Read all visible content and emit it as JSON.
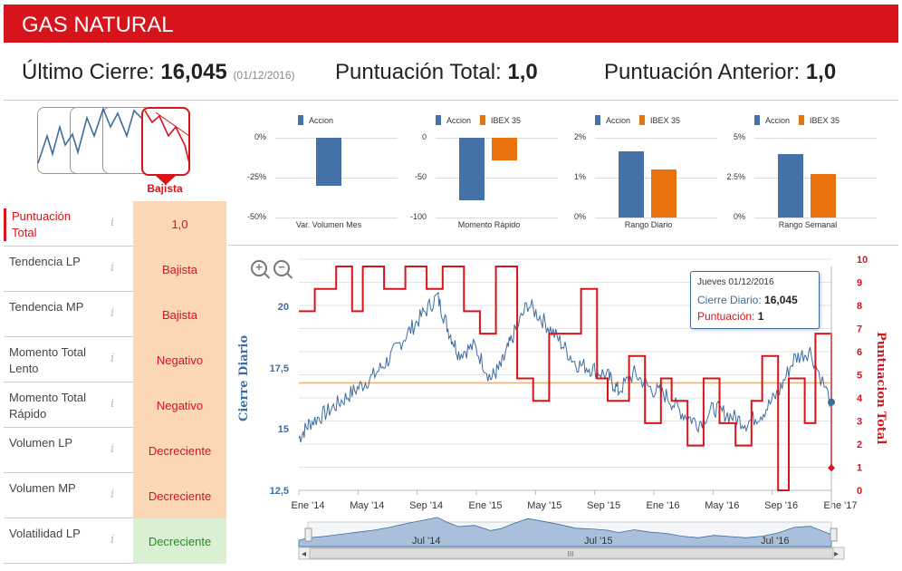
{
  "header": {
    "title": "GAS NATURAL"
  },
  "stats": {
    "ultimo_cierre_label": "Último Cierre:",
    "ultimo_cierre_value": "16,045",
    "ultimo_cierre_date": "(01/12/2016)",
    "puntuacion_total_label": "Puntuación Total:",
    "puntuacion_total_value": "1,0",
    "puntuacion_anterior_label": "Puntuación Anterior:",
    "puntuacion_anterior_value": "1,0"
  },
  "trend": {
    "label": "Bajista"
  },
  "table": {
    "rows": [
      {
        "label": "Puntuación Total",
        "value": "1,0",
        "bg": "#fcd7b6",
        "color": "#d7131b"
      },
      {
        "label": "Tendencia LP",
        "value": "Bajista",
        "bg": "#fcd7b6",
        "color": "#d7131b"
      },
      {
        "label": "Tendencia MP",
        "value": "Bajista",
        "bg": "#fcd7b6",
        "color": "#d7131b"
      },
      {
        "label": "Momento Total Lento",
        "value": "Negativo",
        "bg": "#fcd7b6",
        "color": "#d7131b"
      },
      {
        "label": "Momento Total Rápido",
        "value": "Negativo",
        "bg": "#fcd7b6",
        "color": "#d7131b"
      },
      {
        "label": "Volumen LP",
        "value": "Decreciente",
        "bg": "#fcd7b6",
        "color": "#d7131b"
      },
      {
        "label": "Volumen MP",
        "value": "Decreciente",
        "bg": "#fcd7b6",
        "color": "#d7131b"
      },
      {
        "label": "Volatilidad LP",
        "value": "Decreciente",
        "bg": "#d9f0d3",
        "color": "#2a8a2a"
      }
    ],
    "info_glyph": "i"
  },
  "colors": {
    "accion": "#4472a8",
    "ibex": "#e8720c",
    "red": "#d7131b",
    "blue_line": "#3d6d9e"
  },
  "chart_data": [
    {
      "type": "bar",
      "title": "Var. Volumen Mes",
      "series": [
        {
          "name": "Accion",
          "values": [
            -30
          ]
        }
      ],
      "ticks": [
        "0%",
        "-25%",
        "-50%"
      ],
      "ylim": [
        -50,
        0
      ]
    },
    {
      "type": "bar",
      "title": "Momento Rápido",
      "series": [
        {
          "name": "Accion",
          "values": [
            -78
          ]
        },
        {
          "name": "IBEX 35",
          "values": [
            -28
          ]
        }
      ],
      "ticks": [
        "0",
        "-50",
        "-100"
      ],
      "ylim": [
        -100,
        0
      ]
    },
    {
      "type": "bar",
      "title": "Rango Diario",
      "series": [
        {
          "name": "Accion",
          "values": [
            1.65
          ]
        },
        {
          "name": "IBEX 35",
          "values": [
            1.2
          ]
        }
      ],
      "ticks": [
        "2%",
        "1%",
        "0%"
      ],
      "ylim": [
        0,
        2
      ]
    },
    {
      "type": "bar",
      "title": "Rango Semanal",
      "series": [
        {
          "name": "Accion",
          "values": [
            4.0
          ]
        },
        {
          "name": "IBEX 35",
          "values": [
            2.7
          ]
        }
      ],
      "ticks": [
        "5%",
        "2.5%",
        "0%"
      ],
      "ylim": [
        0,
        5
      ]
    },
    {
      "type": "line",
      "title": "",
      "ylabel": "Cierre Diario",
      "y2label": "Puntuacion Total",
      "ylim": [
        12.5,
        21.5
      ],
      "y2lim": [
        0,
        10
      ],
      "yticks": [
        "20",
        "17,5",
        "15",
        "12,5"
      ],
      "y2ticks": [
        "10",
        "9",
        "8",
        "7",
        "6",
        "5",
        "4",
        "3",
        "2",
        "1",
        "0"
      ],
      "xticks": [
        "Ene '14",
        "May '14",
        "Sep '14",
        "Ene '15",
        "May '15",
        "Sep '15",
        "Ene '16",
        "May '16",
        "Sep '16",
        "Ene '17"
      ],
      "navigator_ticks": [
        "Jul '14",
        "Jul '15",
        "Jul '16"
      ],
      "reference_level": 4.8,
      "series": [
        {
          "name": "Cierre Diario",
          "x": [
            0,
            0.02,
            0.05,
            0.08,
            0.11,
            0.14,
            0.17,
            0.2,
            0.23,
            0.26,
            0.28,
            0.3,
            0.33,
            0.36,
            0.38,
            0.4,
            0.43,
            0.46,
            0.49,
            0.52,
            0.55,
            0.58,
            0.6,
            0.63,
            0.66,
            0.69,
            0.72,
            0.75,
            0.78,
            0.81,
            0.84,
            0.87,
            0.9,
            0.93,
            0.96,
            1.0
          ],
          "values": [
            14.6,
            15.2,
            15.6,
            16.1,
            16.6,
            17.1,
            17.8,
            18.7,
            19.5,
            20.3,
            19.0,
            18.0,
            18.3,
            17.0,
            17.5,
            18.6,
            20.0,
            19.3,
            18.5,
            17.6,
            17.4,
            17.1,
            16.5,
            17.2,
            16.6,
            16.3,
            15.6,
            15.2,
            15.8,
            15.5,
            15.2,
            15.6,
            16.4,
            17.8,
            18.1,
            16.0
          ]
        },
        {
          "name": "Puntuacion Total",
          "x": [
            0,
            0.03,
            0.07,
            0.1,
            0.12,
            0.16,
            0.2,
            0.24,
            0.27,
            0.31,
            0.34,
            0.37,
            0.41,
            0.44,
            0.47,
            0.5,
            0.53,
            0.56,
            0.58,
            0.62,
            0.65,
            0.68,
            0.7,
            0.73,
            0.76,
            0.79,
            0.82,
            0.85,
            0.87,
            0.9,
            0.92,
            0.95,
            0.97,
            1.0
          ],
          "values": [
            8,
            9,
            10,
            8,
            10,
            9,
            10,
            9,
            10,
            8,
            7,
            10,
            5,
            4,
            7,
            7,
            9,
            5,
            4,
            6,
            3,
            5,
            4,
            2,
            5,
            3,
            2,
            4,
            6,
            0,
            5,
            3,
            7,
            1
          ]
        }
      ]
    }
  ],
  "tooltip": {
    "date": "Jueves 01/12/2016",
    "cierre_label": "Cierre Diario:",
    "cierre_value": "16,045",
    "punt_label": "Puntuación:",
    "punt_value": "1"
  },
  "zoom": {
    "in": "+",
    "out": "−"
  },
  "navigator": {
    "scroll_glyph": "III",
    "left_arrow": "◂",
    "right_arrow": "▸"
  }
}
